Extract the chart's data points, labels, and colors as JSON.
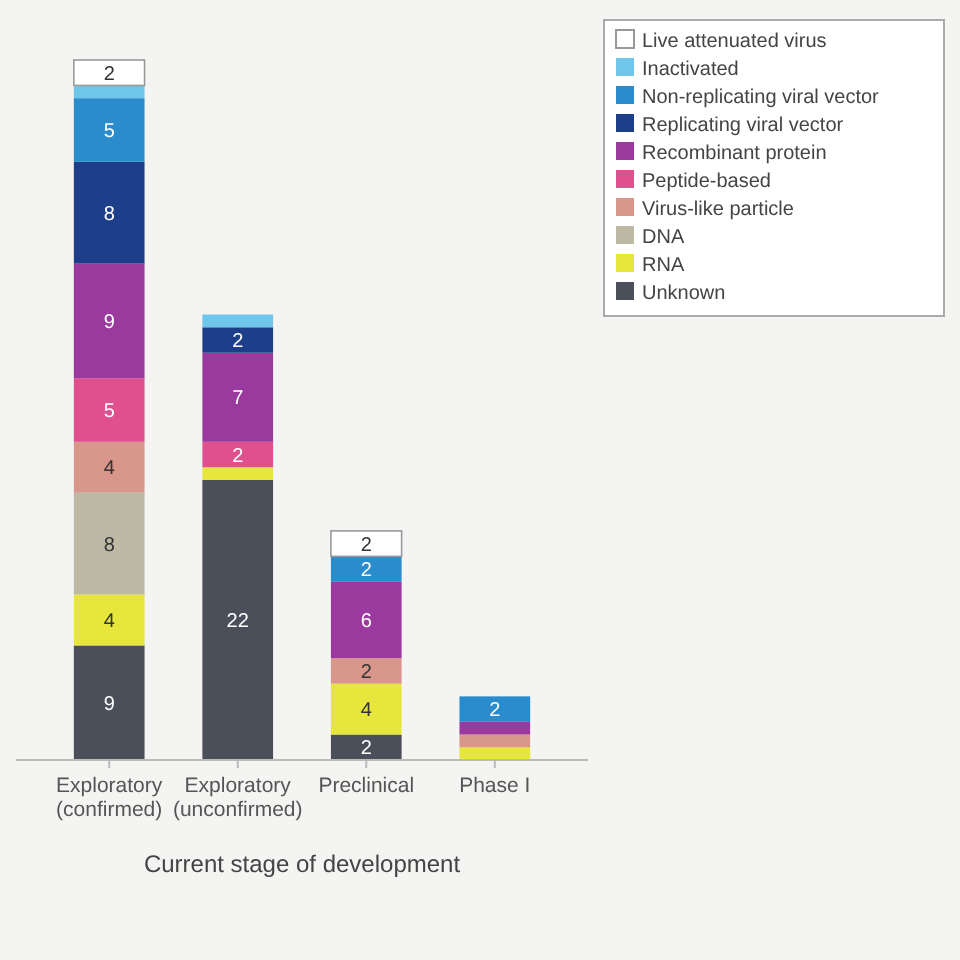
{
  "chart_data": {
    "type": "bar",
    "stacked": true,
    "xlabel": "Current stage of development",
    "categories": [
      "Exploratory (confirmed)",
      "Exploratory (unconfirmed)",
      "Preclinical",
      "Phase I"
    ],
    "series": [
      {
        "name": "Unknown",
        "color": "#4a4f5a",
        "values": [
          9,
          22,
          2,
          0
        ],
        "value_labels": [
          "9",
          "22",
          "2",
          null
        ]
      },
      {
        "name": "RNA",
        "color": "#e6e63c",
        "values": [
          4,
          1,
          4,
          1
        ],
        "value_labels": [
          "4",
          null,
          "4",
          null
        ]
      },
      {
        "name": "DNA",
        "color": "#bdb9a4",
        "values": [
          8,
          0,
          0,
          0
        ],
        "value_labels": [
          "8",
          null,
          null,
          null
        ]
      },
      {
        "name": "Virus-like particle",
        "color": "#d9968a",
        "values": [
          4,
          0,
          2,
          1
        ],
        "value_labels": [
          "4",
          null,
          "2",
          null
        ]
      },
      {
        "name": "Peptide-based",
        "color": "#e0508f",
        "values": [
          5,
          2,
          0,
          0
        ],
        "value_labels": [
          "5",
          "2",
          null,
          null
        ]
      },
      {
        "name": "Recombinant protein",
        "color": "#9b3a9e",
        "values": [
          9,
          7,
          6,
          1
        ],
        "value_labels": [
          "9",
          "7",
          "6",
          null
        ]
      },
      {
        "name": "Replicating viral vector",
        "color": "#1d3f8a",
        "values": [
          8,
          2,
          0,
          0
        ],
        "value_labels": [
          "8",
          "2",
          null,
          null
        ]
      },
      {
        "name": "Non-replicating viral vector",
        "color": "#2a8ccc",
        "values": [
          5,
          0,
          2,
          2
        ],
        "value_labels": [
          "5",
          null,
          "2",
          "2"
        ]
      },
      {
        "name": "Inactivated",
        "color": "#6ec6ea",
        "values": [
          1,
          1,
          0,
          0
        ],
        "value_labels": [
          null,
          null,
          null,
          null
        ]
      },
      {
        "name": "Live attenuated virus",
        "color": "#ffffff",
        "values": [
          2,
          0,
          2,
          0
        ],
        "value_labels": [
          "2",
          null,
          "2",
          null
        ]
      }
    ],
    "legend": "top right"
  }
}
